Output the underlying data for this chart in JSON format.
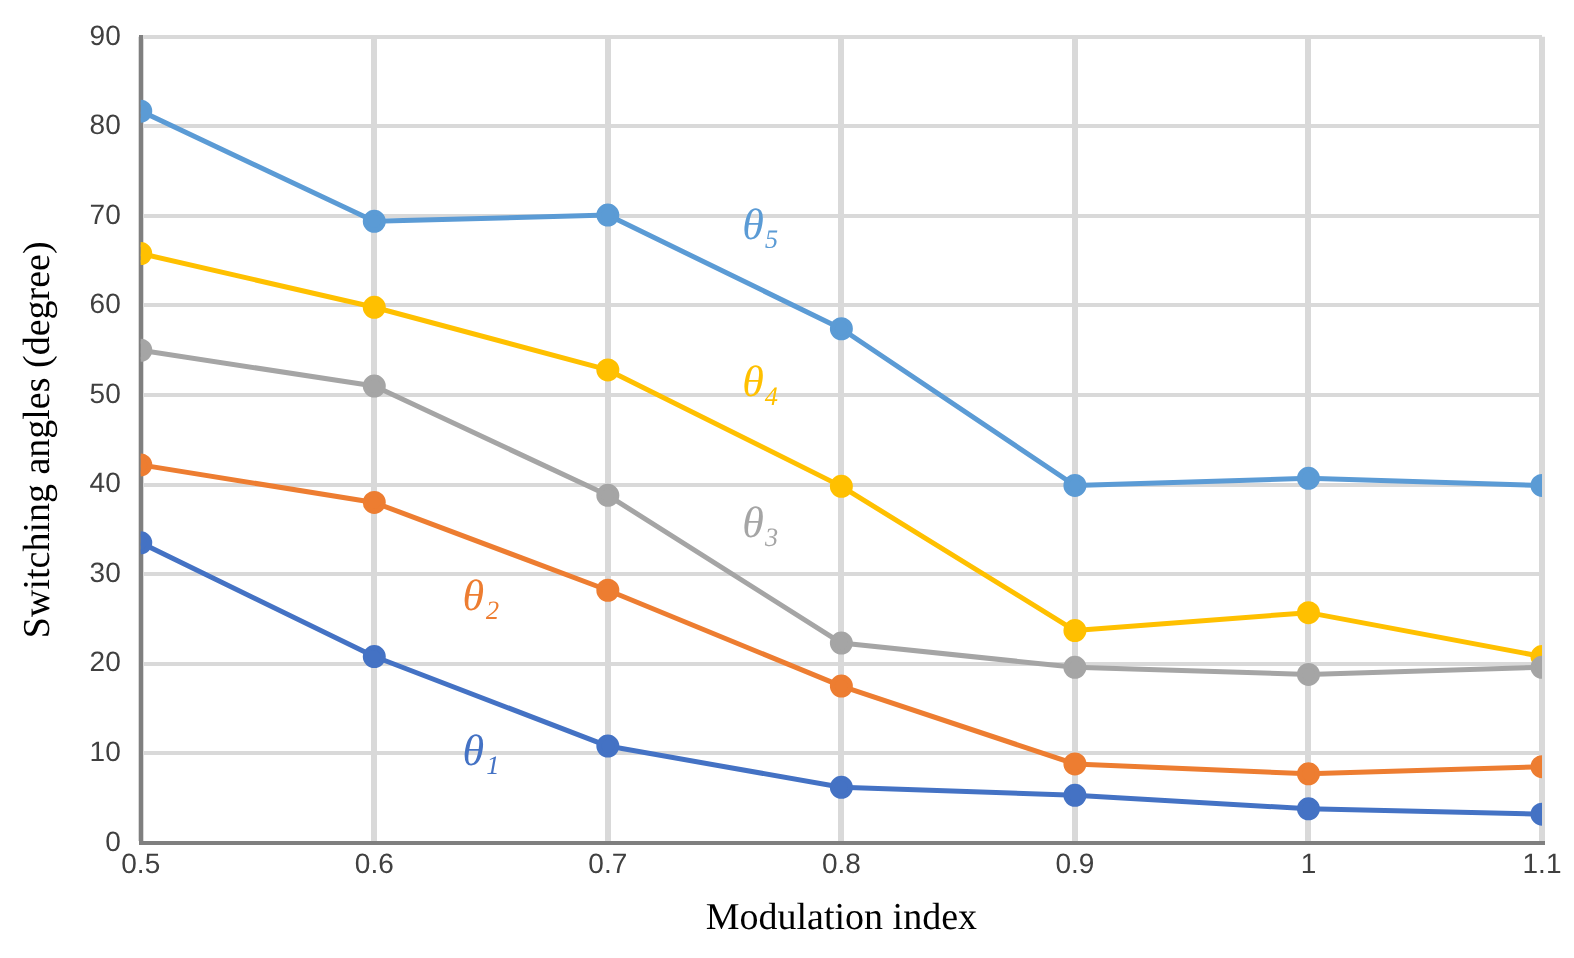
{
  "chart_data": {
    "type": "line",
    "xlabel": "Modulation index",
    "ylabel": "Switching angles (degree)",
    "x": [
      0.5,
      0.6,
      0.7,
      0.8,
      0.9,
      1,
      1.1
    ],
    "series": [
      {
        "name": "θ₁",
        "color": "#4472c4",
        "values": [
          33.5,
          20.8,
          10.8,
          6.2,
          5.3,
          3.8,
          3.2
        ]
      },
      {
        "name": "θ₂",
        "color": "#ed7d31",
        "values": [
          42.2,
          38,
          28.2,
          17.5,
          8.8,
          7.7,
          8.5
        ]
      },
      {
        "name": "θ₃",
        "color": "#a5a5a5",
        "values": [
          55,
          51,
          38.8,
          22.3,
          19.6,
          18.8,
          19.6
        ]
      },
      {
        "name": "θ₄",
        "color": "#ffc000",
        "values": [
          65.8,
          59.8,
          52.8,
          39.8,
          23.7,
          25.7,
          20.8
        ]
      },
      {
        "name": "θ₅",
        "color": "#5b9bd5",
        "values": [
          81.7,
          69.4,
          70.1,
          57.4,
          39.9,
          40.7,
          39.9
        ]
      }
    ],
    "xlim": [
      0.5,
      1.1
    ],
    "xticks": [
      0.5,
      0.6,
      0.7,
      0.8,
      0.9,
      1,
      1.1
    ],
    "ylim": [
      0,
      90
    ],
    "yticks": [
      0,
      10,
      20,
      30,
      40,
      50,
      60,
      70,
      80,
      90
    ],
    "grid": true,
    "legend": false,
    "marker": "circle",
    "line_style": "solid"
  }
}
